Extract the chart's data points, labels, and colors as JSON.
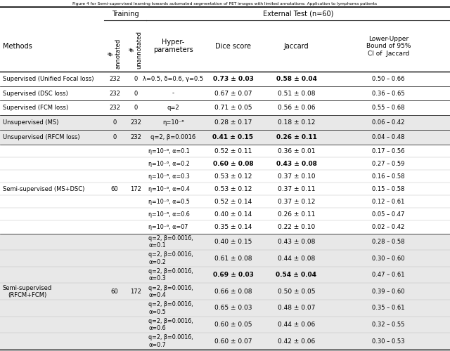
{
  "title": "Figure 4 for Semi-supervised learning towards automated segmentation of PET images with limited annotations: Application to lymphoma patients",
  "bg_gray": "#e8e8e8",
  "bg_white": "#ffffff",
  "rows": [
    {
      "method": "Supervised (Unified Focal loss)",
      "annotated": "232",
      "unannotated": "0",
      "hyperparams": "λ=0.5, δ=0.6, γ=0.5",
      "dice": "0.73 ± 0.03",
      "jaccard": "0.58 ± 0.04",
      "ci": "0.50 – 0.66",
      "dice_bold": true,
      "jaccard_bold": true,
      "bg": "white",
      "multirow": false
    },
    {
      "method": "Supervised (DSC loss)",
      "annotated": "232",
      "unannotated": "0",
      "hyperparams": "-",
      "dice": "0.67 ± 0.07",
      "jaccard": "0.51 ± 0.08",
      "ci": "0.36 – 0.65",
      "dice_bold": false,
      "jaccard_bold": false,
      "bg": "white",
      "multirow": false
    },
    {
      "method": "Supervised (FCM loss)",
      "annotated": "232",
      "unannotated": "0",
      "hyperparams": "q=2",
      "dice": "0.71 ± 0.05",
      "jaccard": "0.56 ± 0.06",
      "ci": "0.55 – 0.68",
      "dice_bold": false,
      "jaccard_bold": false,
      "bg": "white",
      "multirow": false
    },
    {
      "method": "Unsupervised (MS)",
      "annotated": "0",
      "unannotated": "232",
      "hyperparams": "η=10⁻⁶",
      "dice": "0.28 ± 0.17",
      "jaccard": "0.18 ± 0.12",
      "ci": "0.06 – 0.42",
      "dice_bold": false,
      "jaccard_bold": false,
      "bg": "gray",
      "multirow": false
    },
    {
      "method": "Unsupervised (RFCM loss)",
      "annotated": "0",
      "unannotated": "232",
      "hyperparams": "q=2, β=0.0016",
      "dice": "0.41 ± 0.15",
      "jaccard": "0.26 ± 0.11",
      "ci": "0.04 – 0.48",
      "dice_bold": true,
      "jaccard_bold": true,
      "bg": "gray",
      "multirow": false
    },
    {
      "method": "Semi-supervised (MS+DSC)",
      "annotated": "60",
      "unannotated": "172",
      "hyperparams": [
        "η=10⁻⁶, α=0.1",
        "η=10⁻⁶, α=0.2",
        "η=10⁻⁶, α=0.3",
        "η=10⁻⁶, α=0.4",
        "η=10⁻⁶, α=0.5",
        "η=10⁻⁶, α=0.6",
        "η=10⁻⁶, α=07"
      ],
      "dice": [
        "0.52 ± 0.11",
        "0.60 ± 0.08",
        "0.53 ± 0.12",
        "0.53 ± 0.12",
        "0.52 ± 0.14",
        "0.40 ± 0.14",
        "0.35 ± 0.14"
      ],
      "jaccard": [
        "0.36 ± 0.01",
        "0.43 ± 0.08",
        "0.37 ± 0.10",
        "0.37 ± 0.11",
        "0.37 ± 0.12",
        "0.26 ± 0.11",
        "0.22 ± 0.10"
      ],
      "ci": [
        "0.17 – 0.56",
        "0.27 – 0.59",
        "0.16 – 0.58",
        "0.15 – 0.58",
        "0.12 – 0.61",
        "0.05 – 0.47",
        "0.02 – 0.42"
      ],
      "dice_bold_idx": [
        1
      ],
      "jaccard_bold_idx": [
        1
      ],
      "bg": "white",
      "multirow": true
    },
    {
      "method": "Semi-supervised\n(RFCM+FCM)",
      "annotated": "60",
      "unannotated": "172",
      "hyperparams": [
        "q=2, β=0.0016,\nα=0.1",
        "q=2, β=0.0016,\nα=0.2",
        "q=2, β=0.0016,\nα=0.3",
        "q=2, β=0.0016,\nα=0.4",
        "q=2, β=0.0016,\nα=0.5",
        "q=2, β=0.0016,\nα=0.6",
        "q=2, β=0.0016,\nα=0.7"
      ],
      "dice": [
        "0.40 ± 0.15",
        "0.61 ± 0.08",
        "0.69 ± 0.03",
        "0.66 ± 0.08",
        "0.65 ± 0.03",
        "0.60 ± 0.05",
        "0.60 ± 0.07"
      ],
      "jaccard": [
        "0.43 ± 0.08",
        "0.44 ± 0.08",
        "0.54 ± 0.04",
        "0.50 ± 0.05",
        "0.48 ± 0.07",
        "0.44 ± 0.06",
        "0.42 ± 0.06"
      ],
      "ci": [
        "0.28 – 0.58",
        "0.30 – 0.60",
        "0.47 – 0.61",
        "0.39 – 0.60",
        "0.35 – 0.61",
        "0.32 – 0.55",
        "0.30 – 0.53"
      ],
      "dice_bold_idx": [
        2
      ],
      "jaccard_bold_idx": [
        2
      ],
      "bg": "gray",
      "multirow": true
    }
  ]
}
